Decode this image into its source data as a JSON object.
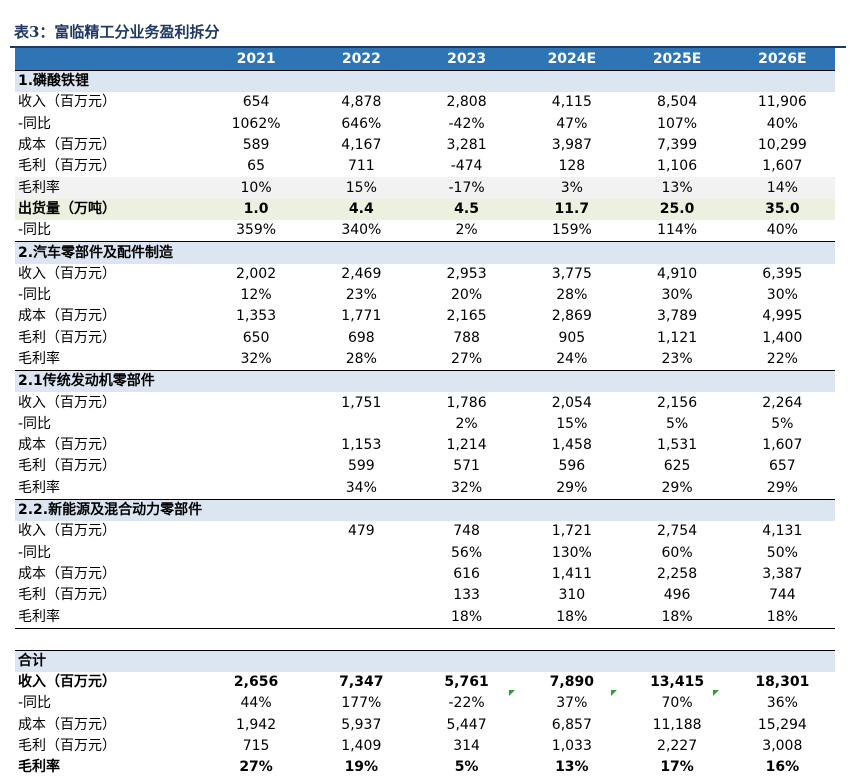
{
  "title": "表3：富临精工分业务盈利拆分",
  "header": [
    "",
    "2021",
    "2022",
    "2023",
    "2024E",
    "2025E",
    "2026E"
  ],
  "rows": [
    {
      "type": "section",
      "cells": [
        "1.磷酸铁锂",
        "",
        "",
        "",
        "",
        "",
        ""
      ]
    },
    {
      "type": "normal",
      "cells": [
        "收入（百万元）",
        "654",
        "4,878",
        "2,808",
        "4,115",
        "8,504",
        "11,906"
      ]
    },
    {
      "type": "normal",
      "cells": [
        "-同比",
        "1062%",
        "646%",
        "-42%",
        "47%",
        "107%",
        "40%"
      ]
    },
    {
      "type": "normal",
      "cells": [
        "成本（百万元）",
        "589",
        "4,167",
        "3,281",
        "3,987",
        "7,399",
        "10,299"
      ]
    },
    {
      "type": "normal",
      "cells": [
        "毛利（百万元）",
        "65",
        "711",
        "-474",
        "128",
        "1,106",
        "1,607"
      ]
    },
    {
      "type": "shade",
      "cells": [
        "毛利率",
        "10%",
        "15%",
        "-17%",
        "3%",
        "13%",
        "14%"
      ]
    },
    {
      "type": "highlight",
      "cells": [
        "出货量（万吨）",
        "1.0",
        "4.4",
        "4.5",
        "11.7",
        "25.0",
        "35.0"
      ]
    },
    {
      "type": "normal",
      "cells": [
        "-同比",
        "359%",
        "340%",
        "2%",
        "159%",
        "114%",
        "40%"
      ]
    },
    {
      "type": "section",
      "cells": [
        "2.汽车零部件及配件制造",
        "",
        "",
        "",
        "",
        "",
        ""
      ]
    },
    {
      "type": "normal",
      "cells": [
        "收入（百万元）",
        "2,002",
        "2,469",
        "2,953",
        "3,775",
        "4,910",
        "6,395"
      ]
    },
    {
      "type": "normal",
      "cells": [
        "-同比",
        "12%",
        "23%",
        "20%",
        "28%",
        "30%",
        "30%"
      ]
    },
    {
      "type": "normal",
      "cells": [
        "成本（百万元）",
        "1,353",
        "1,771",
        "2,165",
        "2,869",
        "3,789",
        "4,995"
      ]
    },
    {
      "type": "normal",
      "cells": [
        "毛利（百万元）",
        "650",
        "698",
        "788",
        "905",
        "1,121",
        "1,400"
      ]
    },
    {
      "type": "normal",
      "cells": [
        "毛利率",
        "32%",
        "28%",
        "27%",
        "24%",
        "23%",
        "22%"
      ]
    },
    {
      "type": "section",
      "cells": [
        "2.1传统发动机零部件",
        "",
        "",
        "",
        "",
        "",
        ""
      ]
    },
    {
      "type": "normal",
      "cells": [
        "收入（百万元）",
        "",
        "1,751",
        "1,786",
        "2,054",
        "2,156",
        "2,264"
      ]
    },
    {
      "type": "normal",
      "cells": [
        "-同比",
        "",
        "",
        "2%",
        "15%",
        "5%",
        "5%"
      ]
    },
    {
      "type": "normal",
      "cells": [
        "成本（百万元）",
        "",
        "1,153",
        "1,214",
        "1,458",
        "1,531",
        "1,607"
      ]
    },
    {
      "type": "normal",
      "cells": [
        "毛利（百万元）",
        "",
        "599",
        "571",
        "596",
        "625",
        "657"
      ]
    },
    {
      "type": "normal",
      "cells": [
        "毛利率",
        "",
        "34%",
        "32%",
        "29%",
        "29%",
        "29%"
      ]
    },
    {
      "type": "section",
      "cells": [
        "2.2.新能源及混合动力零部件",
        "",
        "",
        "",
        "",
        "",
        ""
      ]
    },
    {
      "type": "normal",
      "cells": [
        "收入（百万元）",
        "",
        "479",
        "748",
        "1,721",
        "2,754",
        "4,131"
      ]
    },
    {
      "type": "normal",
      "cells": [
        "-同比",
        "",
        "",
        "56%",
        "130%",
        "60%",
        "50%"
      ]
    },
    {
      "type": "normal",
      "cells": [
        "成本（百万元）",
        "",
        "",
        "616",
        "1,411",
        "2,258",
        "3,387"
      ]
    },
    {
      "type": "normal",
      "cells": [
        "毛利（百万元）",
        "",
        "",
        "133",
        "310",
        "496",
        "744"
      ]
    },
    {
      "type": "lastrow",
      "cells": [
        "毛利率",
        "",
        "",
        "18%",
        "18%",
        "18%",
        "18%"
      ]
    },
    {
      "type": "spacer",
      "cells": [
        "",
        "",
        "",
        "",
        "",
        "",
        ""
      ]
    },
    {
      "type": "section",
      "cells": [
        "合计",
        "",
        "",
        "",
        "",
        "",
        ""
      ]
    },
    {
      "type": "bold",
      "cells": [
        "收入（百万元）",
        "2,656",
        "7,347",
        "5,761",
        "7,890",
        "13,415",
        "18,301"
      ]
    },
    {
      "type": "normal",
      "cells": [
        "-同比",
        "44%",
        "177%",
        "-22%",
        "37%",
        "70%",
        "36%"
      ]
    },
    {
      "type": "normal",
      "cells": [
        "成本（百万元）",
        "1,942",
        "5,937",
        "5,447",
        "6,857",
        "11,188",
        "15,294"
      ]
    },
    {
      "type": "normal",
      "cells": [
        "毛利（百万元）",
        "715",
        "1,409",
        "314",
        "1,033",
        "2,227",
        "3,008"
      ]
    },
    {
      "type": "bold",
      "cells": [
        "毛利率",
        "27%",
        "19%",
        "5%",
        "13%",
        "17%",
        "16%"
      ]
    }
  ]
}
